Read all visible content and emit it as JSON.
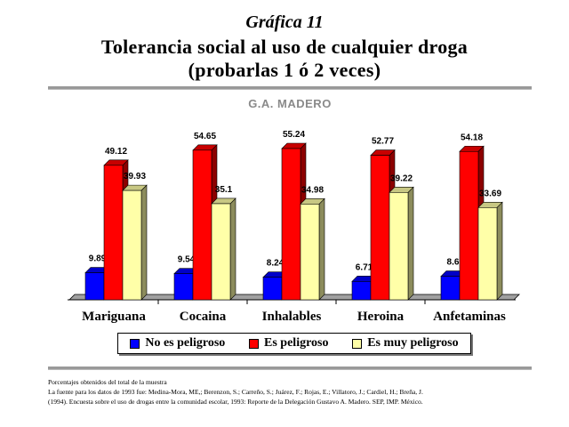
{
  "header": {
    "graph_number": "Gráfica 11",
    "title_line_1": "Tolerancia social al uso de cualquier droga",
    "title_line_2": "(probarlas 1 ó 2 veces)"
  },
  "chart_data": {
    "type": "bar",
    "title": "G.A. MADERO",
    "categories": [
      "Mariguana",
      "Cocaina",
      "Inhalables",
      "Heroina",
      "Anfetaminas"
    ],
    "series": [
      {
        "name": "No es peligroso",
        "color": "#0000ff",
        "values": [
          9.89,
          9.54,
          8.24,
          6.71,
          8.6
        ],
        "labels": [
          "9.89",
          "9.54",
          "8.24",
          "6.71",
          "8.6"
        ]
      },
      {
        "name": "Es peligroso",
        "color": "#ff0000",
        "values": [
          49.12,
          54.65,
          55.24,
          52.77,
          54.18
        ],
        "labels": [
          "49.12",
          "54.65",
          "55.24",
          "52.77",
          "54.18"
        ]
      },
      {
        "name": "Es muy peligroso",
        "color": "#ffffa8",
        "values": [
          39.93,
          35.1,
          34.98,
          39.22,
          33.69
        ],
        "labels": [
          "39.93",
          "35.1",
          "34.98",
          "39.22",
          "33.69"
        ]
      }
    ],
    "ylim": [
      0,
      60
    ],
    "grid": false,
    "legend_position": "bottom"
  },
  "footnote": {
    "line_1": "Porcentajes obtenidos del total de la muestra",
    "line_2": "La fuente para los datos de 1993 fue: Medina-Mora, ME,; Berenzon, S.; Carreño, S.; Juárez, F.; Rojas, E.; Villatoro, J.; Cardiel, H.; Breña, J.",
    "line_3": "(1994). Encuesta sobre el uso de drogas entre la comunidad escolar, 1993: Reporte de la Delegación Gustavo A. Madero. SEP, IMP. México."
  }
}
